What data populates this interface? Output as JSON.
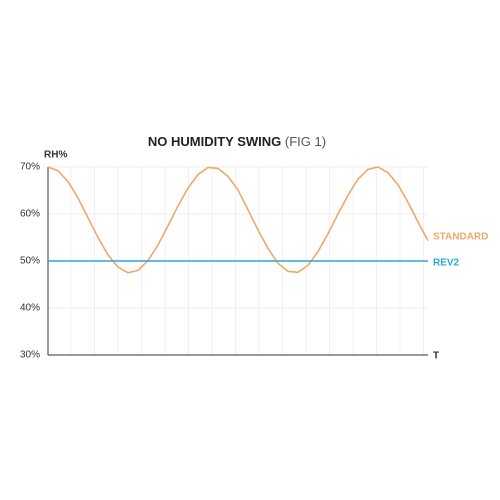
{
  "chart_data": {
    "type": "line",
    "title": "NO HUMIDITY SWING",
    "subtitle": "(FIG 1)",
    "y_label": "RH%",
    "x_label": "T",
    "x": [
      0,
      1,
      2,
      3,
      4,
      5,
      6,
      7,
      8,
      9,
      10,
      11,
      12,
      13,
      14,
      15,
      16,
      17,
      18,
      19,
      20,
      21,
      22,
      23,
      24,
      25,
      26,
      27,
      28,
      29,
      30,
      31,
      32,
      33,
      34,
      35,
      36,
      37,
      38
    ],
    "xlim": [
      0,
      38
    ],
    "ylim": [
      30,
      70
    ],
    "yticks": [
      {
        "value": 30,
        "label": "30%"
      },
      {
        "value": 40,
        "label": "40%"
      },
      {
        "value": 50,
        "label": "50%"
      },
      {
        "value": 60,
        "label": "60%"
      },
      {
        "value": 70,
        "label": "70%"
      }
    ],
    "grid": true,
    "series": [
      {
        "name": "STANDARD",
        "color": "#f0a868",
        "values": [
          70,
          69.2,
          66.9,
          63.4,
          59.2,
          55.0,
          51.3,
          48.7,
          47.5,
          48.0,
          50.1,
          53.4,
          57.5,
          61.7,
          65.5,
          68.4,
          69.9,
          69.7,
          68.0,
          65.1,
          60.9,
          56.6,
          52.7,
          49.5,
          47.8,
          47.6,
          49.1,
          52.0,
          55.8,
          60.0,
          64.0,
          67.4,
          69.5,
          70.0,
          68.8,
          66.2,
          62.5,
          58.3,
          54.3
        ]
      },
      {
        "name": "REV2",
        "color": "#29a8d8",
        "values": [
          50,
          50,
          50,
          50,
          50,
          50,
          50,
          50,
          50,
          50,
          50,
          50,
          50,
          50,
          50,
          50,
          50,
          50,
          50,
          50,
          50,
          50,
          50,
          50,
          50,
          50,
          50,
          50,
          50,
          50,
          50,
          50,
          50,
          50,
          50,
          50,
          50,
          50,
          50
        ]
      }
    ]
  }
}
